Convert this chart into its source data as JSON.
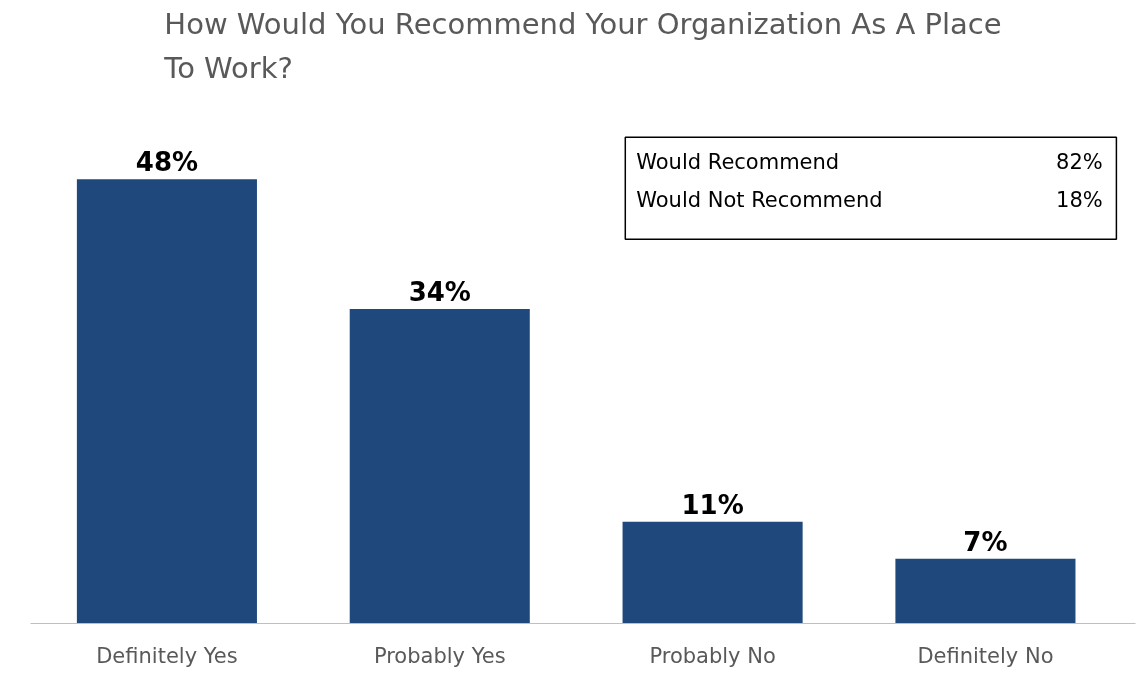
{
  "chart_data": {
    "type": "bar",
    "title": "How Would You Recommend Your Organization As A Place To Work?",
    "categories": [
      "Definitely Yes",
      "Probably Yes",
      "Probably No",
      "Definitely No"
    ],
    "values": [
      48,
      34,
      11,
      7
    ],
    "color": "#1f487c",
    "value_labels": [
      "48%",
      "34%",
      "11%",
      "7%"
    ],
    "annotations": [
      "Would Recommend",
      "82%",
      "Would Not Recommend",
      "18%"
    ],
    "grid": false
  }
}
